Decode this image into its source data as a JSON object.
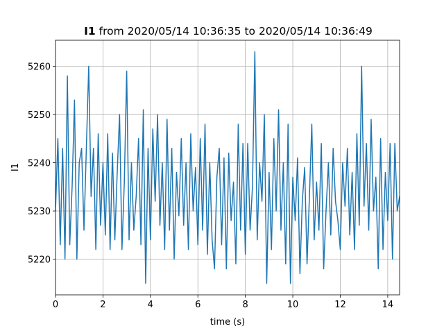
{
  "chart_data": {
    "type": "line",
    "title_series": "I1",
    "title": "from 2020/05/14 10:36:35 to 2020/05/14 10:36:49",
    "xlabel": "time (s)",
    "ylabel": "I1",
    "xlim": [
      0,
      14.5
    ],
    "xticks": [
      0,
      2,
      4,
      6,
      8,
      10,
      12,
      14
    ],
    "ylim": [
      5212.6,
      5265.4
    ],
    "yticks": [
      5220,
      5230,
      5240,
      5250,
      5260
    ],
    "grid": true,
    "x": [
      0,
      0.1,
      0.2,
      0.3,
      0.4,
      0.5,
      0.6,
      0.7,
      0.8,
      0.9,
      1,
      1.1,
      1.2,
      1.3,
      1.4,
      1.5,
      1.6,
      1.7,
      1.8,
      1.9,
      2,
      2.1,
      2.2,
      2.3,
      2.4,
      2.5,
      2.6,
      2.7,
      2.8,
      2.9,
      3,
      3.1,
      3.2,
      3.3,
      3.4,
      3.5,
      3.6,
      3.7,
      3.8,
      3.9,
      4,
      4.1,
      4.2,
      4.3,
      4.4,
      4.5,
      4.6,
      4.7,
      4.8,
      4.9,
      5,
      5.1,
      5.2,
      5.3,
      5.4,
      5.5,
      5.6,
      5.7,
      5.8,
      5.9,
      6,
      6.1,
      6.2,
      6.3,
      6.4,
      6.5,
      6.6,
      6.7,
      6.8,
      6.9,
      7,
      7.1,
      7.2,
      7.3,
      7.4,
      7.5,
      7.6,
      7.7,
      7.8,
      7.9,
      8,
      8.1,
      8.2,
      8.3,
      8.4,
      8.5,
      8.6,
      8.7,
      8.8,
      8.9,
      9,
      9.1,
      9.2,
      9.3,
      9.4,
      9.5,
      9.6,
      9.7,
      9.8,
      9.9,
      10,
      10.1,
      10.2,
      10.3,
      10.4,
      10.5,
      10.6,
      10.7,
      10.8,
      10.9,
      11,
      11.1,
      11.2,
      11.3,
      11.4,
      11.5,
      11.6,
      11.7,
      11.8,
      11.9,
      12,
      12.1,
      12.2,
      12.3,
      12.4,
      12.5,
      12.6,
      12.7,
      12.8,
      12.9,
      13,
      13.1,
      13.2,
      13.3,
      13.4,
      13.5,
      13.6,
      13.7,
      13.8,
      13.9,
      14,
      14.1,
      14.2,
      14.3,
      14.4,
      14.5
    ],
    "series": [
      {
        "name": "I1",
        "color": "#1f77b4",
        "values": [
          5230,
          5245,
          5223,
          5243,
          5220,
          5258,
          5223,
          5235,
          5253,
          5220,
          5240,
          5243,
          5226,
          5243,
          5260,
          5233,
          5243,
          5222,
          5246,
          5227,
          5240,
          5225,
          5246,
          5222,
          5242,
          5224,
          5238,
          5250,
          5222,
          5236,
          5259,
          5224,
          5240,
          5226,
          5233,
          5245,
          5223,
          5251,
          5215,
          5243,
          5224,
          5247,
          5232,
          5250,
          5227,
          5240,
          5222,
          5249,
          5226,
          5243,
          5220,
          5238,
          5229,
          5245,
          5227,
          5240,
          5222,
          5246,
          5230,
          5239,
          5223,
          5245,
          5226,
          5248,
          5221,
          5240,
          5224,
          5218,
          5237,
          5243,
          5223,
          5241,
          5218,
          5242,
          5228,
          5236,
          5219,
          5248,
          5226,
          5244,
          5221,
          5244,
          5226,
          5235,
          5263,
          5224,
          5240,
          5232,
          5250,
          5215,
          5238,
          5222,
          5245,
          5230,
          5251,
          5226,
          5240,
          5219,
          5248,
          5215,
          5237,
          5228,
          5241,
          5217,
          5232,
          5239,
          5219,
          5233,
          5248,
          5224,
          5236,
          5226,
          5244,
          5218,
          5230,
          5240,
          5225,
          5243,
          5232,
          5228,
          5222,
          5240,
          5231,
          5243,
          5225,
          5238,
          5222,
          5246,
          5227,
          5260,
          5231,
          5244,
          5226,
          5249,
          5230,
          5237,
          5218,
          5245,
          5222,
          5238,
          5228,
          5244,
          5220,
          5244,
          5230,
          5233
        ]
      }
    ]
  }
}
